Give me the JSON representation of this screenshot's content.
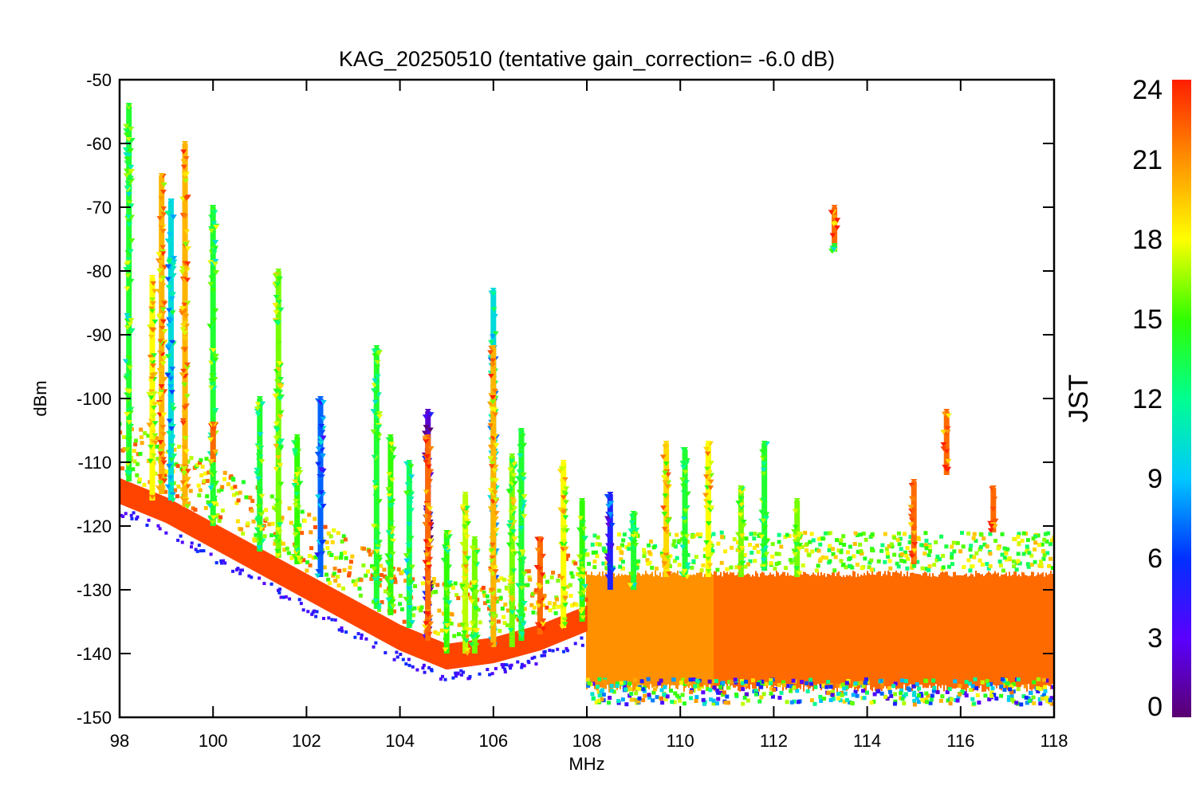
{
  "chart_data": {
    "type": "scatter",
    "title": "KAG_20250510 (tentative gain_correction= -6.0 dB)",
    "xlabel": "MHz",
    "ylabel": "dBm",
    "xlim": [
      98,
      118
    ],
    "ylim": [
      -150,
      -50
    ],
    "xticks": [
      98,
      100,
      102,
      104,
      106,
      108,
      110,
      112,
      114,
      116,
      118
    ],
    "yticks": [
      -50,
      -60,
      -70,
      -80,
      -90,
      -100,
      -110,
      -120,
      -130,
      -140,
      -150
    ],
    "grid": false,
    "colorbar": {
      "label": "JST",
      "range": [
        0,
        24
      ],
      "ticks": [
        0,
        3,
        6,
        9,
        12,
        15,
        18,
        21,
        24
      ],
      "colormap": "rainbow"
    },
    "noise_floor": [
      {
        "x": 98,
        "y": -114
      },
      {
        "x": 99,
        "y": -117
      },
      {
        "x": 100,
        "y": -121
      },
      {
        "x": 101,
        "y": -125
      },
      {
        "x": 102,
        "y": -129
      },
      {
        "x": 103,
        "y": -133
      },
      {
        "x": 104,
        "y": -137
      },
      {
        "x": 105,
        "y": -140
      },
      {
        "x": 106,
        "y": -139
      },
      {
        "x": 107,
        "y": -137
      },
      {
        "x": 108,
        "y": -134
      }
    ],
    "high_band": {
      "x_start": 108,
      "x_end": 118,
      "y_min": -146,
      "y_max": -127,
      "jst_dominant": 22
    },
    "signals": [
      {
        "freq": 98.2,
        "peak": -54,
        "base": -113,
        "jst": 14
      },
      {
        "freq": 98.7,
        "peak": -81,
        "base": -116,
        "jst": 18
      },
      {
        "freq": 98.9,
        "peak": -65,
        "base": -115,
        "jst": 20
      },
      {
        "freq": 99.1,
        "peak": -69,
        "base": -116,
        "jst": 10
      },
      {
        "freq": 99.4,
        "peak": -60,
        "base": -117,
        "jst": 20
      },
      {
        "freq": 100.0,
        "peak": -70,
        "base": -120,
        "jst": 14
      },
      {
        "freq": 100.0,
        "peak": -104,
        "base": -110,
        "jst": 22
      },
      {
        "freq": 101.0,
        "peak": -100,
        "base": -124,
        "jst": 14
      },
      {
        "freq": 101.4,
        "peak": -80,
        "base": -125,
        "jst": 16
      },
      {
        "freq": 101.8,
        "peak": -106,
        "base": -126,
        "jst": 15
      },
      {
        "freq": 102.3,
        "peak": -100,
        "base": -128,
        "jst": 7
      },
      {
        "freq": 103.5,
        "peak": -92,
        "base": -133,
        "jst": 14
      },
      {
        "freq": 103.8,
        "peak": -106,
        "base": -134,
        "jst": 15
      },
      {
        "freq": 104.2,
        "peak": -110,
        "base": -136,
        "jst": 13
      },
      {
        "freq": 104.6,
        "peak": -102,
        "base": -138,
        "jst": 2
      },
      {
        "freq": 104.6,
        "peak": -106,
        "base": -138,
        "jst": 22
      },
      {
        "freq": 105.0,
        "peak": -121,
        "base": -140,
        "jst": 15
      },
      {
        "freq": 105.4,
        "peak": -115,
        "base": -140,
        "jst": 17
      },
      {
        "freq": 105.6,
        "peak": -122,
        "base": -140,
        "jst": 16
      },
      {
        "freq": 106.0,
        "peak": -83,
        "base": -139,
        "jst": 10
      },
      {
        "freq": 106.0,
        "peak": -92,
        "base": -139,
        "jst": 20
      },
      {
        "freq": 106.4,
        "peak": -109,
        "base": -139,
        "jst": 16
      },
      {
        "freq": 106.6,
        "peak": -105,
        "base": -138,
        "jst": 14
      },
      {
        "freq": 107.0,
        "peak": -122,
        "base": -137,
        "jst": 22
      },
      {
        "freq": 107.5,
        "peak": -110,
        "base": -136,
        "jst": 18
      },
      {
        "freq": 107.9,
        "peak": -116,
        "base": -135,
        "jst": 15
      },
      {
        "freq": 108.5,
        "peak": -115,
        "base": -130,
        "jst": 5
      },
      {
        "freq": 109.0,
        "peak": -118,
        "base": -130,
        "jst": 14
      },
      {
        "freq": 109.7,
        "peak": -107,
        "base": -128,
        "jst": 19
      },
      {
        "freq": 110.1,
        "peak": -108,
        "base": -128,
        "jst": 14
      },
      {
        "freq": 110.6,
        "peak": -107,
        "base": -128,
        "jst": 18
      },
      {
        "freq": 111.3,
        "peak": -114,
        "base": -128,
        "jst": 16
      },
      {
        "freq": 111.8,
        "peak": -107,
        "base": -127,
        "jst": 14
      },
      {
        "freq": 112.5,
        "peak": -116,
        "base": -128,
        "jst": 16
      },
      {
        "freq": 113.3,
        "peak": -70,
        "base": -76,
        "jst": 22
      },
      {
        "freq": 113.3,
        "peak": -76,
        "base": -77,
        "jst": 14
      },
      {
        "freq": 115.0,
        "peak": -113,
        "base": -126,
        "jst": 22
      },
      {
        "freq": 115.7,
        "peak": -102,
        "base": -112,
        "jst": 22
      },
      {
        "freq": 116.7,
        "peak": -114,
        "base": -121,
        "jst": 22
      }
    ]
  }
}
